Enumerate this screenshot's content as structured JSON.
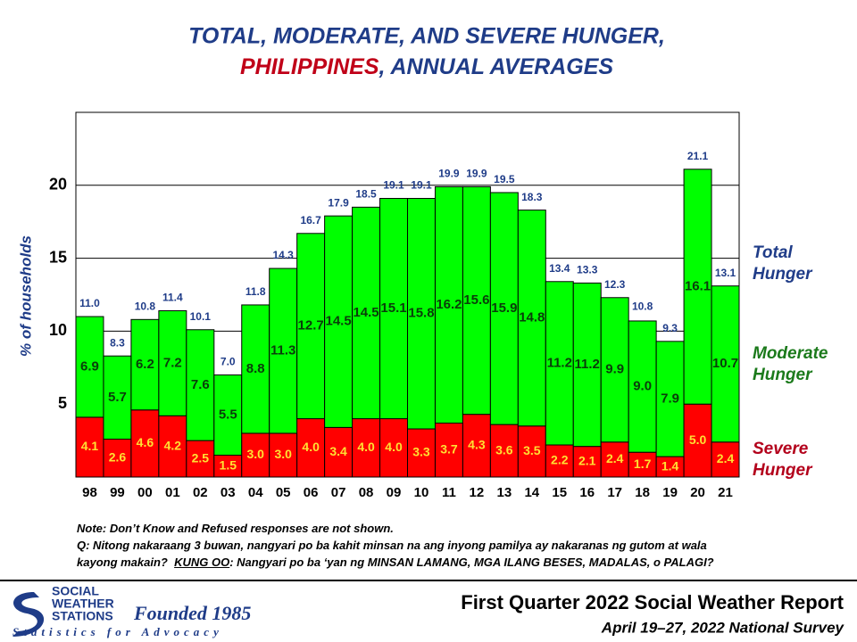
{
  "chart_data": {
    "type": "stacked_bar",
    "title_line1": "TOTAL, MODERATE, AND SEVERE HUNGER,",
    "title_highlight": "PHILIPPINES",
    "title_rest": ", ANNUAL AVERAGES",
    "y_label": "% of households",
    "categories": [
      "98",
      "99",
      "00",
      "01",
      "02",
      "03",
      "04",
      "05",
      "06",
      "07",
      "08",
      "09",
      "10",
      "11",
      "12",
      "13",
      "14",
      "15",
      "16",
      "17",
      "18",
      "19",
      "20",
      "21"
    ],
    "series": [
      {
        "name": "Severe Hunger",
        "color": "#ff0000",
        "legend_color": "#b3001b",
        "label_color": "#ffe033",
        "values": [
          4.1,
          2.6,
          4.6,
          4.2,
          2.5,
          1.5,
          3.0,
          3.0,
          4.0,
          3.4,
          4.0,
          4.0,
          3.3,
          3.7,
          4.3,
          3.6,
          3.5,
          2.2,
          2.1,
          2.4,
          1.7,
          1.4,
          5.0,
          2.4
        ],
        "value_labels": [
          "4.1",
          "2.6",
          "4.6",
          "4.2",
          "2.5",
          "1.5",
          "3.0",
          "3.0",
          "4.0",
          "3.4",
          "4.0",
          "4.0",
          "3.3",
          "3.7",
          "4.3",
          "3.6",
          "3.5",
          "2.2",
          "2.1",
          "2.4",
          "1.7",
          "1.4",
          "5.0",
          "2.4"
        ]
      },
      {
        "name": "Moderate Hunger",
        "color": "#00ff00",
        "legend_color": "#1b7a1b",
        "label_color": "#0a3d0a",
        "values": [
          6.9,
          5.7,
          6.2,
          7.2,
          7.6,
          5.5,
          8.8,
          11.3,
          12.7,
          14.5,
          14.5,
          15.1,
          15.8,
          16.2,
          15.6,
          15.9,
          14.8,
          11.2,
          11.2,
          9.9,
          9.0,
          7.9,
          16.1,
          10.7
        ],
        "value_labels": [
          "6.9",
          "5.7",
          "6.2",
          "7.2",
          "7.6",
          "5.5",
          "8.8",
          "11.3",
          "12.7",
          "14.5",
          "14.5",
          "15.1",
          "15.8",
          "16.2",
          "15.6",
          "15.9",
          "14.8",
          "11.2",
          "11.2",
          "9.9",
          "9.0",
          "7.9",
          "16.1",
          "10.7"
        ]
      }
    ],
    "totals": {
      "name": "Total Hunger",
      "color": "#1f3c88",
      "values": [
        11.0,
        8.3,
        10.8,
        11.4,
        10.1,
        7.0,
        11.8,
        14.3,
        16.7,
        17.9,
        18.5,
        19.1,
        19.1,
        19.9,
        19.9,
        19.5,
        18.3,
        13.4,
        13.3,
        12.3,
        10.8,
        9.3,
        21.1,
        13.1
      ],
      "value_labels": [
        "11.0",
        "8.3",
        "10.8",
        "11.4",
        "10.1",
        "7.0",
        "11.8",
        "14.3",
        "16.7",
        "17.9",
        "18.5",
        "19.1",
        "19.1",
        "19.9",
        "19.9",
        "19.5",
        "18.3",
        "13.4",
        "13.3",
        "12.3",
        "10.8",
        "9.3",
        "21.1",
        "13.1"
      ]
    },
    "ylim": [
      0,
      25
    ],
    "yticks": [
      5,
      10,
      15,
      20
    ],
    "grid": true
  },
  "notes": [
    "Note: Don’t Know and Refused responses are not shown.",
    "Q: Nitong nakaraang 3 buwan, nangyari po ba kahit minsan na ang inyong pamilya ay nakaranas ng gutom at wala"
  ],
  "question_end": {
    "pre": "kayong makain?  ",
    "emph": "KUNG OO",
    "post": ": Nangyari po ba ‘yan ng MINSAN LAMANG, MGA ILANG BESES, MADALAS, o PALAGI?"
  },
  "logo": {
    "line1": "SOCIAL",
    "line2": "WEATHER",
    "line3": "STATIONS",
    "founded": "Founded 1985",
    "tagline": "Statistics for Advocacy"
  },
  "report": {
    "title": "First Quarter 2022 Social Weather Report",
    "subtitle": "April 19–27, 2022 National Survey"
  }
}
